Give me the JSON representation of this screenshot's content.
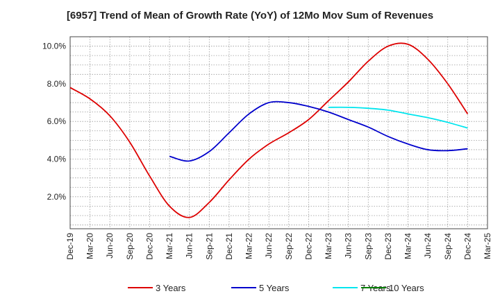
{
  "chart_data": {
    "type": "line",
    "title": "[6957]  Trend of Mean of Growth Rate (YoY) of 12Mo Mov Sum of Revenues",
    "xlabel": "",
    "ylabel": "",
    "ylim": [
      0.3,
      10.5
    ],
    "y_ticks": [
      2.0,
      4.0,
      6.0,
      8.0,
      10.0
    ],
    "y_tick_labels": [
      "2.0%",
      "4.0%",
      "6.0%",
      "8.0%",
      "10.0%"
    ],
    "x": [
      "Dec-19",
      "Mar-20",
      "Jun-20",
      "Sep-20",
      "Dec-20",
      "Mar-21",
      "Jun-21",
      "Sep-21",
      "Dec-21",
      "Mar-22",
      "Jun-22",
      "Sep-22",
      "Dec-22",
      "Mar-23",
      "Jun-23",
      "Sep-23",
      "Dec-23",
      "Mar-24",
      "Jun-24",
      "Sep-24",
      "Dec-24",
      "Mar-25"
    ],
    "grid": true,
    "legend_position": "bottom",
    "series": [
      {
        "name": "3 Years",
        "color": "#dd0000",
        "values": [
          7.8,
          7.2,
          6.3,
          4.9,
          3.1,
          1.5,
          0.9,
          1.7,
          2.9,
          4.0,
          4.8,
          5.4,
          6.1,
          7.1,
          8.1,
          9.2,
          10.0,
          10.1,
          9.3,
          8.0,
          6.4,
          null
        ]
      },
      {
        "name": "5 Years",
        "color": "#0000cc",
        "values": [
          null,
          null,
          null,
          null,
          null,
          4.15,
          3.9,
          4.4,
          5.4,
          6.4,
          7.0,
          7.0,
          6.8,
          6.5,
          6.1,
          5.7,
          5.2,
          4.8,
          4.5,
          4.45,
          4.55,
          null
        ]
      },
      {
        "name": "7 Years",
        "color": "#00e5ee",
        "values": [
          null,
          null,
          null,
          null,
          null,
          null,
          null,
          null,
          null,
          null,
          null,
          null,
          null,
          6.75,
          6.75,
          6.7,
          6.6,
          6.4,
          6.2,
          5.95,
          5.65,
          null
        ]
      },
      {
        "name": "10 Years",
        "color": "#008000",
        "values": [
          null,
          null,
          null,
          null,
          null,
          null,
          null,
          null,
          null,
          null,
          null,
          null,
          null,
          null,
          null,
          null,
          null,
          null,
          null,
          null,
          null,
          null
        ]
      }
    ]
  }
}
